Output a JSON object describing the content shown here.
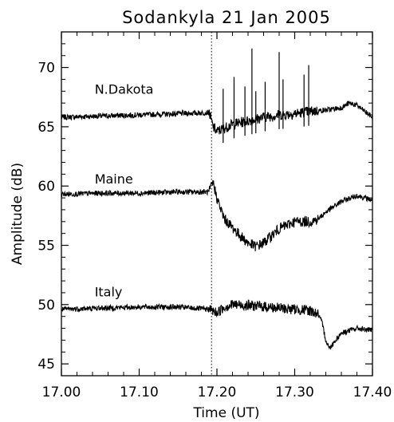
{
  "chart_data": {
    "type": "line",
    "title": "Sodankyla 21 Jan 2005",
    "xlabel": "Time (UT)",
    "ylabel": "Amplitude (dB)",
    "xlim": [
      17.0,
      17.4
    ],
    "ylim": [
      44,
      73
    ],
    "x_ticks": [
      "17.00",
      "17.10",
      "17.20",
      "17.30",
      "17.40"
    ],
    "y_ticks": [
      "45",
      "50",
      "55",
      "60",
      "65",
      "70"
    ],
    "grid": false,
    "event_line_x": 17.193,
    "series": [
      {
        "name": "N.Dakota",
        "x": [
          17.0,
          17.05,
          17.1,
          17.15,
          17.19,
          17.195,
          17.2,
          17.21,
          17.22,
          17.24,
          17.26,
          17.28,
          17.3,
          17.32,
          17.34,
          17.36,
          17.37,
          17.38,
          17.4
        ],
        "values": [
          65.8,
          65.9,
          66.0,
          66.1,
          66.2,
          65.0,
          64.6,
          64.9,
          65.2,
          65.5,
          65.8,
          66.0,
          66.1,
          66.3,
          66.4,
          66.6,
          67.0,
          66.8,
          65.8
        ],
        "spikes": [
          {
            "x": 17.208,
            "y": 68.2
          },
          {
            "x": 17.222,
            "y": 69.2
          },
          {
            "x": 17.236,
            "y": 68.4
          },
          {
            "x": 17.245,
            "y": 71.6
          },
          {
            "x": 17.25,
            "y": 68.0
          },
          {
            "x": 17.262,
            "y": 68.8
          },
          {
            "x": 17.28,
            "y": 71.3
          },
          {
            "x": 17.285,
            "y": 69.0
          },
          {
            "x": 17.312,
            "y": 69.4
          },
          {
            "x": 17.318,
            "y": 70.2
          }
        ]
      },
      {
        "name": "Maine",
        "x": [
          17.0,
          17.05,
          17.1,
          17.15,
          17.19,
          17.195,
          17.2,
          17.205,
          17.21,
          17.22,
          17.23,
          17.24,
          17.25,
          17.26,
          17.27,
          17.28,
          17.3,
          17.32,
          17.33,
          17.34,
          17.36,
          17.38,
          17.4
        ],
        "values": [
          59.3,
          59.4,
          59.4,
          59.5,
          59.5,
          60.3,
          59.0,
          58.0,
          57.2,
          56.5,
          55.8,
          55.2,
          54.9,
          55.2,
          55.8,
          56.4,
          57.0,
          57.0,
          57.2,
          57.8,
          58.7,
          59.2,
          58.8
        ]
      },
      {
        "name": "Italy",
        "x": [
          17.0,
          17.05,
          17.1,
          17.15,
          17.19,
          17.2,
          17.21,
          17.22,
          17.25,
          17.28,
          17.3,
          17.32,
          17.33,
          17.335,
          17.34,
          17.345,
          17.35,
          17.36,
          17.38,
          17.4
        ],
        "values": [
          49.6,
          49.7,
          49.8,
          49.8,
          49.6,
          49.3,
          49.8,
          50.0,
          49.9,
          49.7,
          49.6,
          49.5,
          49.2,
          48.5,
          47.0,
          46.3,
          46.8,
          47.6,
          48.0,
          47.8
        ]
      }
    ]
  }
}
